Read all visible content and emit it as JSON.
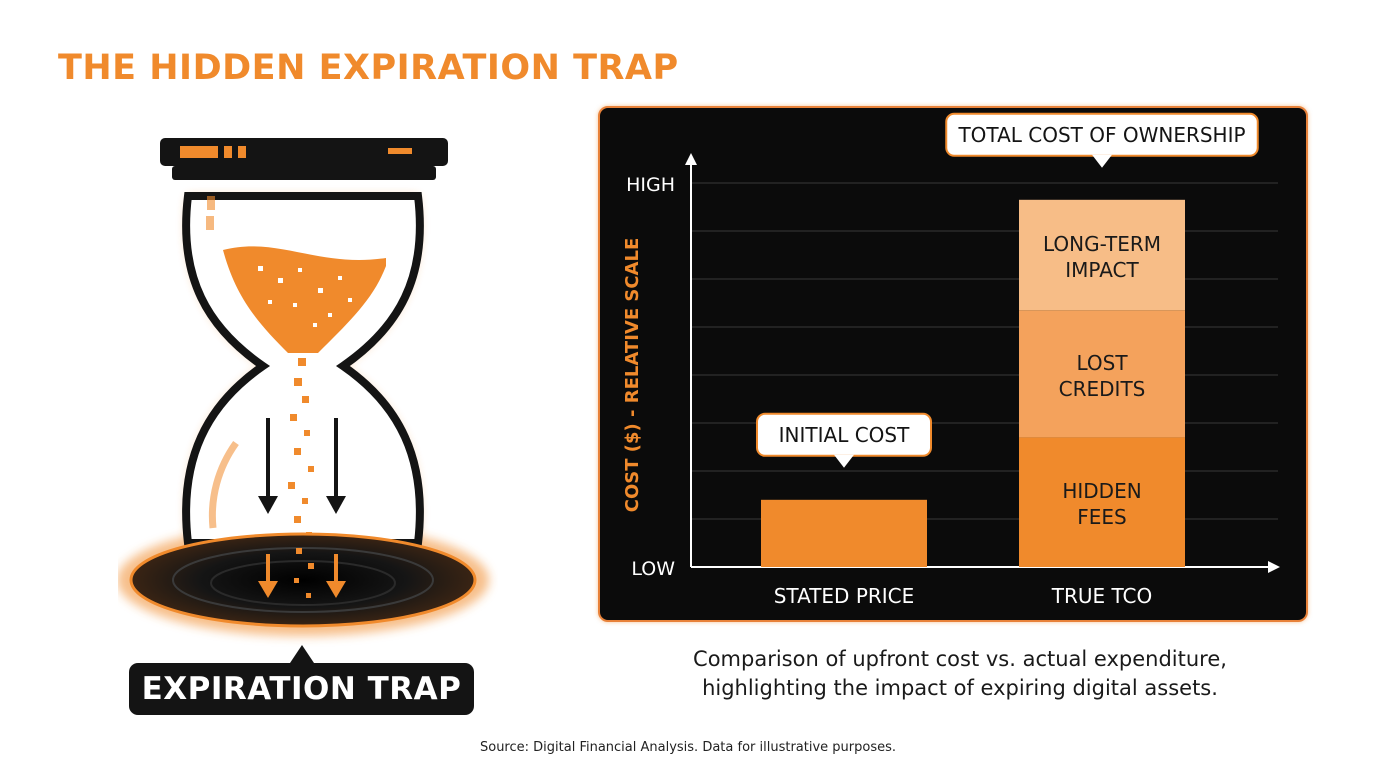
{
  "title": "THE HIDDEN EXPIRATION TRAP",
  "illustration": {
    "icon": "hourglass-icon",
    "label": "EXPIRATION TRAP"
  },
  "colors": {
    "accent": "#f08a2c",
    "panel": "#0b0b0b",
    "segment_hidden_fees": "#f08a2c",
    "segment_lost_credits": "#f4a25c",
    "segment_long_term": "#f7bd87"
  },
  "chart_data": {
    "type": "bar",
    "title": "",
    "ylabel": "COST ($) - RELATIVE SCALE",
    "xlabel": "",
    "y_tick_labels": [
      "LOW",
      "HIGH"
    ],
    "ylim": [
      0,
      8
    ],
    "grid": true,
    "categories": [
      "STATED PRICE",
      "TRUE TCO"
    ],
    "series": [
      {
        "name": "HIDDEN FEES",
        "values": [
          1.4,
          2.7
        ]
      },
      {
        "name": "LOST CREDITS",
        "values": [
          0,
          2.65
        ]
      },
      {
        "name": "LONG-TERM IMPACT",
        "values": [
          0,
          2.3
        ]
      }
    ],
    "segment_labels": [
      "HIDDEN FEES",
      "LOST CREDITS",
      "LONG-TERM IMPACT"
    ],
    "callouts": [
      "INITIAL COST",
      "TOTAL COST OF OWNERSHIP"
    ]
  },
  "caption": "Comparison of upfront cost vs. actual expenditure, highlighting the impact of expiring digital assets.",
  "source": "Source: Digital Financial Analysis. Data for illustrative purposes."
}
